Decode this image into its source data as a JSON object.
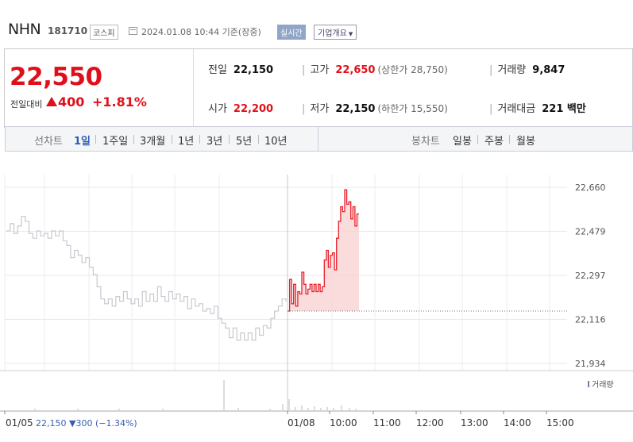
{
  "header": {
    "name": "NHN",
    "code": "181710",
    "market": "코스피",
    "datetime": "2024.01.08 10:44 기준(장중)",
    "live_label": "실시간",
    "corp_label": "기업개요"
  },
  "price": {
    "current": "22,550",
    "change_label": "전일대비",
    "change": "400",
    "change_pct": "+1.81%",
    "prev_close_label": "전일",
    "prev_close": "22,150",
    "open_label": "시가",
    "open": "22,200",
    "high_label": "고가",
    "high": "22,650",
    "upper_limit": "(상한가 28,750)",
    "low_label": "저가",
    "low": "22,150",
    "lower_limit": "(하한가 15,550)",
    "volume_label": "거래량",
    "volume": "9,847",
    "amount_label": "거래대금",
    "amount": "221 백만",
    "up_color": "#e0101a"
  },
  "tabs": {
    "line_label": "선차트",
    "line": [
      "1일",
      "1주일",
      "3개월",
      "1년",
      "3년",
      "5년",
      "10년"
    ],
    "selected": "1일",
    "candle_label": "봉차트",
    "candle": [
      "일봉",
      "주봉",
      "월봉"
    ]
  },
  "chart_data": {
    "type": "line",
    "y_ticks": [
      "22,660",
      "22,479",
      "22,297",
      "22,116",
      "21,934"
    ],
    "ylim": [
      21934,
      22660
    ],
    "x_ticks": [
      "01/05",
      "01/08",
      "10:00",
      "11:00",
      "12:00",
      "13:00",
      "14:00",
      "15:00"
    ],
    "legend_volume": "거래량",
    "prev_day_summary": "22,150 ▼300 (−1.34%)",
    "prev_close": 22150,
    "series": [
      {
        "values": [
          22480,
          22510,
          22470,
          22500,
          22540,
          22520,
          22470,
          22450,
          22480,
          22460,
          22470,
          22450,
          22480,
          22460,
          22480,
          22440,
          22420,
          22370,
          22400,
          22380,
          22350,
          22370,
          22330,
          22300,
          22250,
          22200,
          22180,
          22200,
          22170,
          22210,
          22190,
          22230,
          22200,
          22180,
          22200,
          22170,
          22230,
          22190,
          22220,
          22190,
          22250,
          22210,
          22190,
          22230,
          22200,
          22220,
          22190,
          22210,
          22160,
          22200,
          22170,
          22180,
          22150,
          22160,
          22140,
          22170,
          22120,
          22100,
          22080,
          22040,
          22080,
          22030,
          22060,
          22030,
          22060,
          22030,
          22080,
          22050,
          22090,
          22080,
          22120,
          22150,
          22170,
          22200,
          22190
        ]
      },
      {
        "values": [
          22150,
          22280,
          22180,
          22260,
          22170,
          22230,
          22220,
          22310,
          22260,
          22220,
          22240,
          22260,
          22230,
          22260,
          22230,
          22260,
          22230,
          22250,
          22360,
          22400,
          22330,
          22380,
          22390,
          22320,
          22450,
          22520,
          22580,
          22560,
          22650,
          22590,
          22600,
          22530,
          22580,
          22500,
          22550,
          22550
        ]
      }
    ]
  }
}
